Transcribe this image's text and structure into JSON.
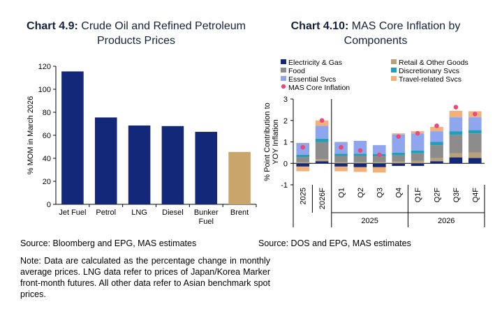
{
  "left": {
    "title_prefix": "Chart 4.9:",
    "title_rest": " Crude Oil and Refined Petroleum Products Prices",
    "source": "Source: Bloomberg and EPG, MAS estimates",
    "note": "Note: Data are calculated as the percentage change in monthly average prices. LNG data refer to prices of Japan/Korea Marker front-month futures. All other data refer to Asian benchmark spot prices."
  },
  "right": {
    "title_prefix": "Chart 4.10:",
    "title_rest": " MAS Core Inflation by Components",
    "source": "Source: DOS and EPG, MAS estimates"
  },
  "chart_data": [
    {
      "type": "bar",
      "categories": [
        "Jet Fuel",
        "Petrol",
        "LNG",
        "Diesel",
        "Bunker Fuel",
        "Brent"
      ],
      "category_lines": [
        [
          "Jet Fuel"
        ],
        [
          "Petrol"
        ],
        [
          "LNG"
        ],
        [
          "Diesel"
        ],
        [
          "Bunker",
          "Fuel"
        ],
        [
          "Brent"
        ]
      ],
      "values": [
        115.5,
        75.5,
        68.5,
        68.0,
        63.0,
        45.5
      ],
      "colors": [
        "#14287a",
        "#14287a",
        "#14287a",
        "#14287a",
        "#14287a",
        "#c9a46b"
      ],
      "ylabel": "% MOM in March 2026",
      "ylim": [
        0,
        120
      ],
      "yticks": [
        0,
        20,
        40,
        60,
        80,
        100,
        120
      ],
      "grid": false
    },
    {
      "type": "bar",
      "stacked": true,
      "categories": [
        "2025",
        "2026F",
        "Q1",
        "Q2",
        "Q3",
        "Q4",
        "Q1F",
        "Q2F",
        "Q3F",
        "Q4F"
      ],
      "group_labels": [
        "2025",
        "2026"
      ],
      "ylabel": "% Point Contribution to YOY Inflation",
      "ylim": [
        -1,
        3
      ],
      "yticks": [
        -1,
        0,
        1,
        2,
        3
      ],
      "legend_position": "top",
      "series": [
        {
          "name": "Electricity & Gas",
          "color": "#14287a",
          "values": [
            -0.15,
            0.1,
            -0.15,
            -0.18,
            -0.18,
            -0.12,
            -0.12,
            0.1,
            0.28,
            0.25
          ]
        },
        {
          "name": "Retail & Other Goods",
          "color": "#b8a07a",
          "values": [
            0.05,
            0.1,
            0.05,
            0.05,
            0.05,
            0.08,
            0.12,
            0.15,
            0.2,
            0.25
          ]
        },
        {
          "name": "Food",
          "color": "#8c8c8c",
          "values": [
            0.25,
            0.8,
            0.3,
            0.3,
            0.28,
            0.3,
            0.35,
            0.6,
            0.85,
            0.9
          ]
        },
        {
          "name": "Discretionary Svcs",
          "color": "#1fa0b8",
          "values": [
            0.1,
            0.15,
            0.1,
            0.1,
            0.1,
            0.12,
            0.13,
            0.15,
            0.17,
            0.15
          ]
        },
        {
          "name": "Essential Svcs",
          "color": "#8fa6ee",
          "values": [
            0.55,
            0.6,
            0.55,
            0.6,
            0.42,
            0.85,
            0.8,
            0.5,
            0.65,
            0.6
          ]
        },
        {
          "name": "Travel-related Svcs",
          "color": "#f0b27a",
          "values": [
            -0.22,
            0.25,
            -0.22,
            -0.22,
            -0.25,
            0.05,
            0.1,
            0.2,
            0.3,
            0.28
          ]
        },
        {
          "name": "MAS Core Inflation",
          "color": "#e84a7f",
          "type": "marker",
          "values": [
            0.75,
            2.0,
            0.75,
            0.6,
            0.4,
            1.25,
            1.4,
            1.75,
            2.62,
            2.3
          ]
        }
      ]
    }
  ]
}
